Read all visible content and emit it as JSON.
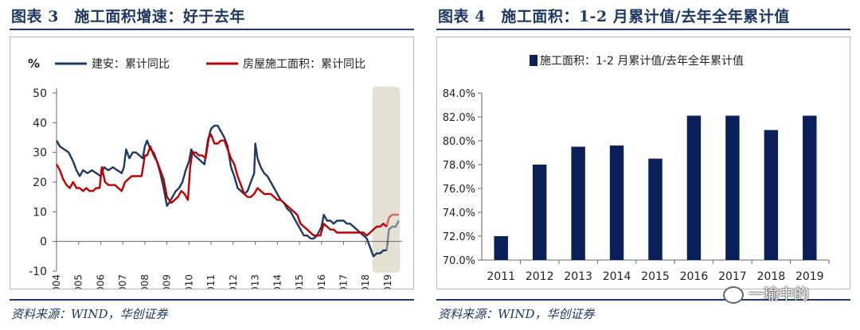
{
  "figure3": {
    "title": "图表 3　施工面积增速：好于去年",
    "source": "资料来源：WIND，华创证券"
  },
  "figure4": {
    "title": "图表 4　施工面积：1-2 月累计值/去年全年累计值",
    "source": "资料来源：WIND，华创证券"
  },
  "watermark": "一瑜中的",
  "chart_data": [
    {
      "type": "line",
      "y_unit_label": "%",
      "ylim": [
        -10,
        50
      ],
      "yticks": [
        -10,
        0,
        10,
        20,
        30,
        40,
        50
      ],
      "xticks": [
        "2004",
        "2005",
        "2006",
        "2007",
        "2008",
        "2009",
        "2010",
        "2011",
        "2012",
        "2013",
        "2014",
        "2015",
        "2016",
        "2017",
        "2018",
        "2019"
      ],
      "x_range": [
        2004.0,
        2019.65
      ],
      "grid": false,
      "legend_position": "top",
      "highlight_range": [
        2018.3,
        2019.55
      ],
      "highlight_color": "#e4e1d4",
      "series": [
        {
          "name": "建安：累计同比",
          "color": "#1f3864",
          "points": [
            [
              2004.0,
              34
            ],
            [
              2004.15,
              32
            ],
            [
              2004.35,
              31
            ],
            [
              2004.55,
              30
            ],
            [
              2004.75,
              27
            ],
            [
              2004.9,
              24
            ],
            [
              2005.05,
              22
            ],
            [
              2005.2,
              24
            ],
            [
              2005.4,
              23
            ],
            [
              2005.6,
              24
            ],
            [
              2005.8,
              23
            ],
            [
              2006.0,
              22
            ],
            [
              2006.15,
              25
            ],
            [
              2006.35,
              24
            ],
            [
              2006.55,
              25
            ],
            [
              2006.75,
              24
            ],
            [
              2006.95,
              23
            ],
            [
              2007.05,
              25
            ],
            [
              2007.15,
              31
            ],
            [
              2007.3,
              28
            ],
            [
              2007.45,
              30
            ],
            [
              2007.6,
              30
            ],
            [
              2007.75,
              29
            ],
            [
              2007.9,
              28
            ],
            [
              2008.0,
              32
            ],
            [
              2008.1,
              34
            ],
            [
              2008.25,
              31
            ],
            [
              2008.4,
              30
            ],
            [
              2008.55,
              27
            ],
            [
              2008.7,
              23
            ],
            [
              2008.85,
              18
            ],
            [
              2009.0,
              12
            ],
            [
              2009.1,
              13
            ],
            [
              2009.25,
              15
            ],
            [
              2009.4,
              17
            ],
            [
              2009.55,
              18
            ],
            [
              2009.7,
              20
            ],
            [
              2009.85,
              24
            ],
            [
              2010.0,
              27
            ],
            [
              2010.1,
              31
            ],
            [
              2010.25,
              29
            ],
            [
              2010.4,
              28
            ],
            [
              2010.55,
              27
            ],
            [
              2010.7,
              26
            ],
            [
              2010.85,
              34
            ],
            [
              2011.0,
              38
            ],
            [
              2011.15,
              39
            ],
            [
              2011.3,
              39
            ],
            [
              2011.45,
              37
            ],
            [
              2011.6,
              35
            ],
            [
              2011.75,
              32
            ],
            [
              2011.9,
              25
            ],
            [
              2012.05,
              22
            ],
            [
              2012.2,
              18
            ],
            [
              2012.35,
              17
            ],
            [
              2012.5,
              16
            ],
            [
              2012.65,
              17
            ],
            [
              2012.8,
              20
            ],
            [
              2012.95,
              23
            ],
            [
              2013.0,
              33
            ],
            [
              2013.1,
              28
            ],
            [
              2013.25,
              25
            ],
            [
              2013.4,
              23
            ],
            [
              2013.55,
              22
            ],
            [
              2013.7,
              20
            ],
            [
              2013.85,
              18
            ],
            [
              2014.0,
              16
            ],
            [
              2014.15,
              14
            ],
            [
              2014.3,
              13
            ],
            [
              2014.45,
              11
            ],
            [
              2014.6,
              10
            ],
            [
              2014.75,
              8
            ],
            [
              2014.9,
              6
            ],
            [
              2015.05,
              4
            ],
            [
              2015.2,
              2
            ],
            [
              2015.35,
              2
            ],
            [
              2015.5,
              1
            ],
            [
              2015.65,
              1
            ],
            [
              2015.8,
              2
            ],
            [
              2016.0,
              5
            ],
            [
              2016.1,
              9
            ],
            [
              2016.25,
              7
            ],
            [
              2016.4,
              7
            ],
            [
              2016.55,
              6
            ],
            [
              2016.7,
              7
            ],
            [
              2016.85,
              7
            ],
            [
              2017.0,
              7
            ],
            [
              2017.15,
              6
            ],
            [
              2017.3,
              6
            ],
            [
              2017.45,
              5
            ],
            [
              2017.6,
              4
            ],
            [
              2017.75,
              3
            ],
            [
              2017.9,
              2
            ],
            [
              2018.05,
              1
            ],
            [
              2018.2,
              -2
            ],
            [
              2018.35,
              -5
            ],
            [
              2018.5,
              -4
            ],
            [
              2018.65,
              -4
            ],
            [
              2018.8,
              -3
            ],
            [
              2018.95,
              -3
            ],
            [
              2019.05,
              4
            ],
            [
              2019.2,
              5
            ],
            [
              2019.35,
              5
            ],
            [
              2019.5,
              7
            ]
          ]
        },
        {
          "name": "房屋施工面积：累计同比",
          "color": "#c00000",
          "points": [
            [
              2004.0,
              26
            ],
            [
              2004.15,
              24
            ],
            [
              2004.3,
              21
            ],
            [
              2004.45,
              19
            ],
            [
              2004.6,
              18
            ],
            [
              2004.75,
              20
            ],
            [
              2004.9,
              18
            ],
            [
              2005.05,
              18
            ],
            [
              2005.2,
              17
            ],
            [
              2005.35,
              18
            ],
            [
              2005.5,
              17
            ],
            [
              2005.65,
              17
            ],
            [
              2005.8,
              18
            ],
            [
              2005.95,
              18
            ],
            [
              2006.05,
              25
            ],
            [
              2006.2,
              20
            ],
            [
              2006.35,
              19
            ],
            [
              2006.5,
              19
            ],
            [
              2006.65,
              19
            ],
            [
              2006.8,
              18
            ],
            [
              2006.95,
              17
            ],
            [
              2007.1,
              20
            ],
            [
              2007.25,
              21
            ],
            [
              2007.4,
              22
            ],
            [
              2007.55,
              22
            ],
            [
              2007.7,
              22
            ],
            [
              2007.85,
              22
            ],
            [
              2008.0,
              29
            ],
            [
              2008.1,
              29
            ],
            [
              2008.25,
              32
            ],
            [
              2008.4,
              29
            ],
            [
              2008.55,
              27
            ],
            [
              2008.7,
              24
            ],
            [
              2008.85,
              21
            ],
            [
              2009.0,
              15
            ],
            [
              2009.1,
              14
            ],
            [
              2009.2,
              13
            ],
            [
              2009.35,
              14
            ],
            [
              2009.5,
              15
            ],
            [
              2009.65,
              17
            ],
            [
              2009.8,
              16
            ],
            [
              2009.95,
              14
            ],
            [
              2010.05,
              25
            ],
            [
              2010.15,
              30
            ],
            [
              2010.3,
              30
            ],
            [
              2010.45,
              29
            ],
            [
              2010.6,
              29
            ],
            [
              2010.75,
              28
            ],
            [
              2010.9,
              35
            ],
            [
              2011.0,
              36
            ],
            [
              2011.15,
              33
            ],
            [
              2011.3,
              33
            ],
            [
              2011.45,
              34
            ],
            [
              2011.6,
              34
            ],
            [
              2011.75,
              31
            ],
            [
              2011.9,
              28
            ],
            [
              2012.05,
              26
            ],
            [
              2012.2,
              22
            ],
            [
              2012.35,
              19
            ],
            [
              2012.5,
              16
            ],
            [
              2012.65,
              15
            ],
            [
              2012.8,
              15
            ],
            [
              2012.95,
              16
            ],
            [
              2013.1,
              18
            ],
            [
              2013.25,
              17
            ],
            [
              2013.4,
              16
            ],
            [
              2013.55,
              16
            ],
            [
              2013.7,
              16
            ],
            [
              2013.85,
              15
            ],
            [
              2014.0,
              14
            ],
            [
              2014.15,
              14
            ],
            [
              2014.3,
              13
            ],
            [
              2014.45,
              12
            ],
            [
              2014.6,
              11
            ],
            [
              2014.75,
              10
            ],
            [
              2014.9,
              9
            ],
            [
              2015.05,
              6
            ],
            [
              2015.2,
              5
            ],
            [
              2015.35,
              4
            ],
            [
              2015.5,
              3
            ],
            [
              2015.65,
              2
            ],
            [
              2015.8,
              2
            ],
            [
              2015.95,
              2
            ],
            [
              2016.1,
              6
            ],
            [
              2016.25,
              5
            ],
            [
              2016.4,
              4
            ],
            [
              2016.55,
              4
            ],
            [
              2016.7,
              3
            ],
            [
              2016.85,
              3
            ],
            [
              2017.0,
              3
            ],
            [
              2017.15,
              3
            ],
            [
              2017.3,
              3
            ],
            [
              2017.45,
              3
            ],
            [
              2017.6,
              3
            ],
            [
              2017.75,
              3
            ],
            [
              2017.9,
              3
            ],
            [
              2018.05,
              2
            ],
            [
              2018.2,
              3
            ],
            [
              2018.35,
              4
            ],
            [
              2018.5,
              5
            ],
            [
              2018.65,
              5
            ],
            [
              2018.8,
              6
            ],
            [
              2018.95,
              5
            ],
            [
              2019.05,
              8
            ],
            [
              2019.2,
              9
            ],
            [
              2019.35,
              9
            ],
            [
              2019.5,
              9
            ]
          ]
        }
      ]
    },
    {
      "type": "bar",
      "ylim": [
        70,
        84
      ],
      "yticks": [
        70,
        72,
        74,
        76,
        78,
        80,
        82,
        84
      ],
      "y_tick_format": "percent_1dp",
      "grid": false,
      "legend_position": "top",
      "categories": [
        "2011",
        "2012",
        "2013",
        "2014",
        "2015",
        "2016",
        "2017",
        "2018",
        "2019"
      ],
      "series": [
        {
          "name": "施工面积：1-2 月累计值/去年全年累计值",
          "color": "#0b1f5b",
          "values": [
            72.0,
            78.0,
            79.5,
            79.6,
            78.5,
            82.1,
            82.1,
            80.9,
            82.1
          ]
        }
      ]
    }
  ]
}
